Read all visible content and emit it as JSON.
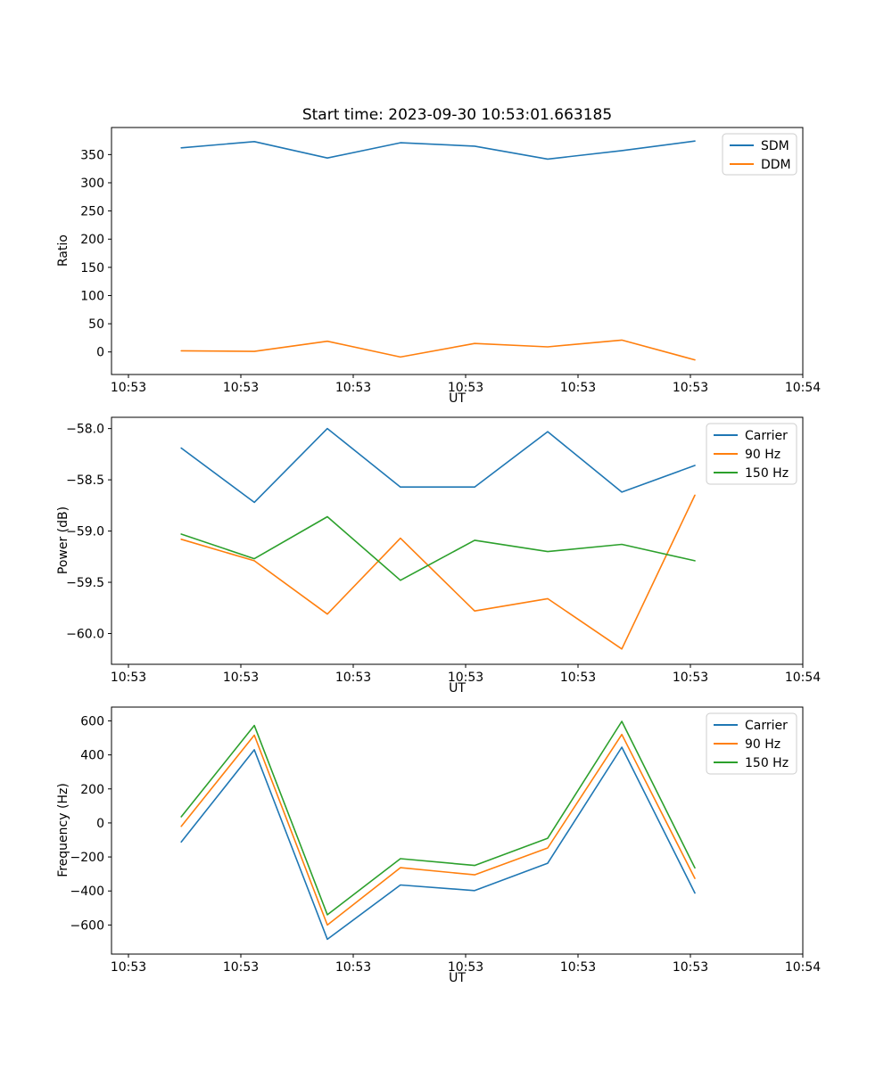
{
  "figure": {
    "title": "Start time: 2023-09-30 10:53:01.663185"
  },
  "chart_data": [
    {
      "type": "line",
      "title": "Start time: 2023-09-30 10:53:01.663185",
      "xlabel": "UT",
      "ylabel": "Ratio",
      "x_seconds_after_105300": [
        4.7,
        11.2,
        17.7,
        24.2,
        30.8,
        37.3,
        43.9,
        50.4
      ],
      "xlim_seconds": [
        -1.508,
        60
      ],
      "xtick_seconds": [
        0,
        10,
        20,
        30,
        40,
        50,
        60
      ],
      "xtick_labels": [
        "10:53",
        "10:53",
        "10:53",
        "10:53",
        "10:53",
        "10:53",
        "10:54"
      ],
      "ylim": [
        -40,
        398
      ],
      "ytick_values": [
        0,
        50,
        100,
        150,
        200,
        250,
        300,
        350
      ],
      "ytick_labels": [
        "0",
        "50",
        "100",
        "150",
        "200",
        "250",
        "300",
        "350"
      ],
      "grid": false,
      "legend_position": "upper right",
      "series": [
        {
          "name": "SDM",
          "color": "#1f77b4",
          "values": [
            362,
            373,
            344,
            371,
            365,
            342,
            357,
            374
          ]
        },
        {
          "name": "DDM",
          "color": "#ff7f0e",
          "values": [
            2,
            1,
            19,
            -9,
            15,
            9,
            21,
            -14
          ]
        }
      ]
    },
    {
      "type": "line",
      "title": "",
      "xlabel": "UT",
      "ylabel": "Power (dB)",
      "x_seconds_after_105300": [
        4.7,
        11.2,
        17.7,
        24.2,
        30.8,
        37.3,
        43.9,
        50.4
      ],
      "xlim_seconds": [
        -1.508,
        60
      ],
      "xtick_seconds": [
        0,
        10,
        20,
        30,
        40,
        50,
        60
      ],
      "xtick_labels": [
        "10:53",
        "10:53",
        "10:53",
        "10:53",
        "10:53",
        "10:53",
        "10:54"
      ],
      "ylim": [
        -60.3,
        -57.89
      ],
      "ytick_values": [
        -58.0,
        -58.5,
        -59.0,
        -59.5,
        -60.0
      ],
      "ytick_labels": [
        "−58.0",
        "−58.5",
        "−59.0",
        "−59.5",
        "−60.0"
      ],
      "grid": false,
      "legend_position": "upper right",
      "series": [
        {
          "name": "Carrier",
          "color": "#1f77b4",
          "values": [
            -58.19,
            -58.72,
            -58.0,
            -58.57,
            -58.57,
            -58.03,
            -58.62,
            -58.36
          ]
        },
        {
          "name": "90 Hz",
          "color": "#ff7f0e",
          "values": [
            -59.08,
            -59.29,
            -59.81,
            -59.07,
            -59.78,
            -59.66,
            -60.15,
            -58.65
          ]
        },
        {
          "name": "150 Hz",
          "color": "#2ca02c",
          "values": [
            -59.03,
            -59.27,
            -58.86,
            -59.48,
            -59.09,
            -59.2,
            -59.13,
            -59.29
          ]
        }
      ]
    },
    {
      "type": "line",
      "title": "",
      "xlabel": "UT",
      "ylabel": "Frequency (Hz)",
      "x_seconds_after_105300": [
        4.7,
        11.2,
        17.7,
        24.2,
        30.8,
        37.3,
        43.9,
        50.4
      ],
      "xlim_seconds": [
        -1.508,
        60
      ],
      "xtick_seconds": [
        0,
        10,
        20,
        30,
        40,
        50,
        60
      ],
      "xtick_labels": [
        "10:53",
        "10:53",
        "10:53",
        "10:53",
        "10:53",
        "10:53",
        "10:54"
      ],
      "ylim": [
        -771,
        681
      ],
      "ytick_values": [
        600,
        400,
        200,
        0,
        -200,
        -400,
        -600
      ],
      "ytick_labels": [
        "600",
        "400",
        "200",
        "0",
        "−200",
        "−400",
        "−600"
      ],
      "grid": false,
      "legend_position": "upper right",
      "series": [
        {
          "name": "Carrier",
          "color": "#1f77b4",
          "values": [
            -112,
            430,
            -684,
            -365,
            -398,
            -237,
            445,
            -412
          ]
        },
        {
          "name": "90 Hz",
          "color": "#ff7f0e",
          "values": [
            -20,
            516,
            -600,
            -263,
            -305,
            -147,
            520,
            -326
          ]
        },
        {
          "name": "150 Hz",
          "color": "#2ca02c",
          "values": [
            36,
            573,
            -540,
            -210,
            -250,
            -90,
            597,
            -264
          ]
        }
      ]
    }
  ]
}
